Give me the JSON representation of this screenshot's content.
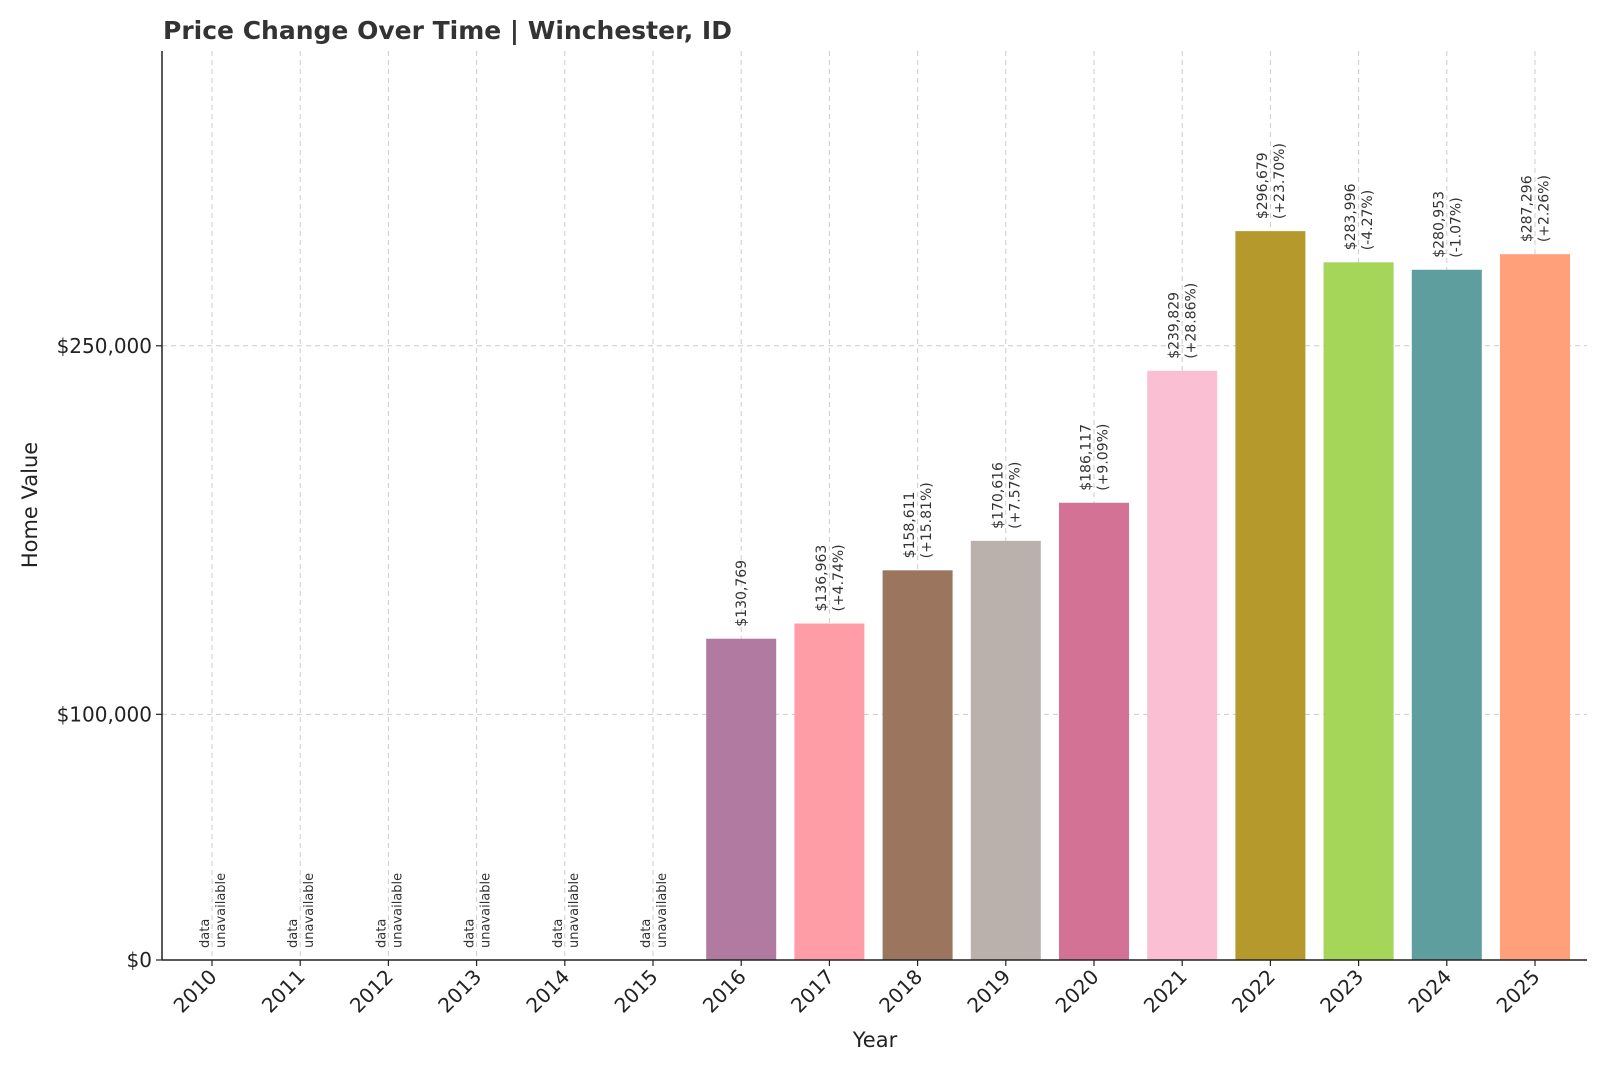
{
  "chart_data": {
    "type": "bar",
    "title": "Price Change Over Time | Winchester, ID",
    "xlabel": "Year",
    "ylabel": "Home Value",
    "categories": [
      "2010",
      "2011",
      "2012",
      "2013",
      "2014",
      "2015",
      "2016",
      "2017",
      "2018",
      "2019",
      "2020",
      "2021",
      "2022",
      "2023",
      "2024",
      "2025"
    ],
    "values": [
      null,
      null,
      null,
      null,
      null,
      null,
      130769,
      136963,
      158611,
      170616,
      186117,
      239829,
      296679,
      283996,
      280953,
      287296
    ],
    "value_labels": [
      "",
      "",
      "",
      "",
      "",
      "",
      "$130,769",
      "$136,963",
      "$158,611",
      "$170,616",
      "$186,117",
      "$239,829",
      "$296,679",
      "$283,996",
      "$280,953",
      "$287,296"
    ],
    "change_labels": [
      "",
      "",
      "",
      "",
      "",
      "",
      "",
      "(+4.74%)",
      "(+15.81%)",
      "(+7.57%)",
      "(+9.09%)",
      "(+28.86%)",
      "(+23.70%)",
      "(-4.27%)",
      "(-1.07%)",
      "(+2.26%)"
    ],
    "unavailable_label": [
      "data",
      "unavailable"
    ],
    "colors": [
      "#b07aa1",
      "#b07aa1",
      "#b07aa1",
      "#b07aa1",
      "#b07aa1",
      "#b07aa1",
      "#b07aa1",
      "#ff9da7",
      "#9c755f",
      "#bab0ac",
      "#d37295",
      "#fabfd2",
      "#b6992d",
      "#a5d65a",
      "#5f9e9e",
      "#ffa07a"
    ],
    "ylim": [
      0,
      370000
    ],
    "yticks": [
      {
        "value": 0,
        "label": "$0"
      },
      {
        "value": 100000,
        "label": "$100,000"
      },
      {
        "value": 250000,
        "label": "$250,000"
      }
    ],
    "grid": true,
    "legend": "none"
  }
}
